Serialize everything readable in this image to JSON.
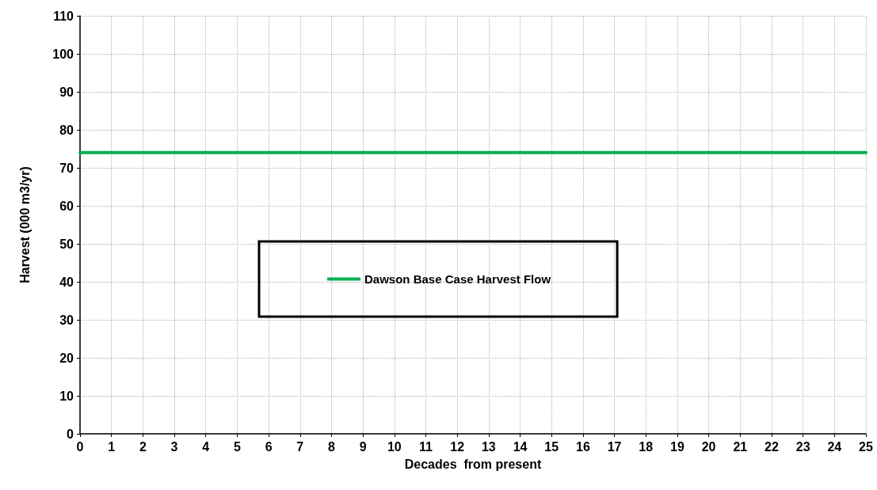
{
  "chart_data": {
    "type": "line",
    "xlabel": "Decades  from present",
    "ylabel": "Harvest (000 m3/yr)",
    "x": [
      0,
      25
    ],
    "series": [
      {
        "name": "Dawson Base Case Harvest Flow",
        "color": "#00b050",
        "values": [
          74,
          74
        ]
      }
    ],
    "xlim": [
      0,
      25
    ],
    "xticks": [
      0,
      1,
      2,
      3,
      4,
      5,
      6,
      7,
      8,
      9,
      10,
      11,
      12,
      13,
      14,
      15,
      16,
      17,
      18,
      19,
      20,
      21,
      22,
      23,
      24,
      25
    ],
    "ylim": [
      0,
      110
    ],
    "yticks": [
      0,
      10,
      20,
      30,
      40,
      50,
      60,
      70,
      80,
      90,
      100,
      110
    ],
    "grid": true,
    "legend": "center",
    "marker": "none",
    "line_style": "solid"
  }
}
